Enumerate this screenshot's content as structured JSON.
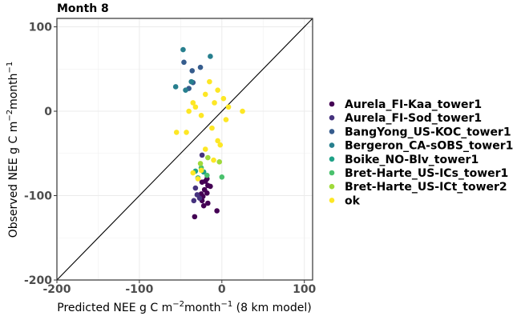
{
  "chart_data": {
    "type": "scatter",
    "title": "Month 8",
    "xlabel": {
      "prefix": "Predicted NEE g C m",
      "sup1": "−2",
      "mid": "month",
      "sup2": "−1",
      "suffix": " (8 km model)"
    },
    "ylabel": {
      "prefix": "Observed NEE g C m",
      "sup1": "−2",
      "mid": "month",
      "sup2": "−1"
    },
    "xlim": [
      -200,
      110
    ],
    "ylim": [
      -200,
      110
    ],
    "x_ticks": [
      -200,
      -100,
      0,
      100
    ],
    "y_ticks": [
      -200,
      -100,
      0,
      100
    ],
    "x_tick_labels": [
      "-200",
      "-100",
      "0",
      "100"
    ],
    "y_tick_labels": [
      "-200",
      "-100",
      "0",
      "100"
    ],
    "reference_line": "1:1",
    "grid": true,
    "legend_position": "right",
    "series": [
      {
        "name": "Aurela_FI-Kaa_tower1",
        "color": "#440154",
        "points": [
          [
            -33,
            -125
          ],
          [
            -6,
            -118
          ],
          [
            -22,
            -112
          ],
          [
            -24,
            -106
          ],
          [
            -17,
            -109
          ],
          [
            -23,
            -101
          ],
          [
            -18,
            -97
          ],
          [
            -25,
            -98
          ],
          [
            -21,
            -93
          ],
          [
            -17,
            -88
          ],
          [
            -14,
            -89
          ],
          [
            -20,
            -83
          ],
          [
            -24,
            -84
          ],
          [
            -18,
            -80
          ]
        ]
      },
      {
        "name": "Aurela_FI-Sod_tower1",
        "color": "#46337e",
        "points": [
          [
            -34,
            -106
          ],
          [
            -30,
            -99
          ],
          [
            -27,
            -103
          ],
          [
            -32,
            -91
          ],
          [
            -24,
            -52
          ]
        ]
      },
      {
        "name": "BangYong_US-KOC_tower1",
        "color": "#365c8d",
        "points": [
          [
            -46,
            58
          ],
          [
            -36,
            48
          ],
          [
            -26,
            52
          ],
          [
            -40,
            27
          ],
          [
            -35,
            34
          ]
        ]
      },
      {
        "name": "Bergeron_CA-sOBS_tower1",
        "color": "#277f8e",
        "points": [
          [
            -47,
            73
          ],
          [
            -14,
            65
          ],
          [
            -56,
            29
          ],
          [
            -44,
            25
          ],
          [
            -37,
            35
          ]
        ]
      },
      {
        "name": "Boike_NO-Blv_tower1",
        "color": "#1fa187",
        "points": [
          [
            -32,
            -71
          ],
          [
            -22,
            -72
          ],
          [
            -29,
            -79
          ]
        ]
      },
      {
        "name": "Bret-Harte_US-ICs_tower1",
        "color": "#4ac16d",
        "points": [
          [
            0,
            -78
          ],
          [
            -18,
            -76
          ],
          [
            -25,
            -67
          ]
        ]
      },
      {
        "name": "Bret-Harte_US-ICt_tower2",
        "color": "#9fda3a",
        "points": [
          [
            -3,
            -60
          ],
          [
            -17,
            -55
          ],
          [
            -26,
            -62
          ]
        ]
      },
      {
        "name": "ok",
        "color": "#fde725",
        "points": [
          [
            -15,
            35
          ],
          [
            -32,
            5
          ],
          [
            -43,
            -25
          ],
          [
            -55,
            -25
          ],
          [
            25,
            0
          ],
          [
            -20,
            20
          ],
          [
            -9,
            10
          ],
          [
            -25,
            -5
          ],
          [
            -12,
            -20
          ],
          [
            -5,
            -35
          ],
          [
            -20,
            -45
          ],
          [
            -10,
            -58
          ],
          [
            -35,
            -73
          ],
          [
            -29,
            -80
          ],
          [
            -25,
            -70
          ],
          [
            -40,
            0
          ],
          [
            -35,
            10
          ],
          [
            -5,
            25
          ],
          [
            2,
            15
          ],
          [
            8,
            5
          ],
          [
            5,
            -10
          ],
          [
            -2,
            -40
          ]
        ]
      }
    ]
  }
}
